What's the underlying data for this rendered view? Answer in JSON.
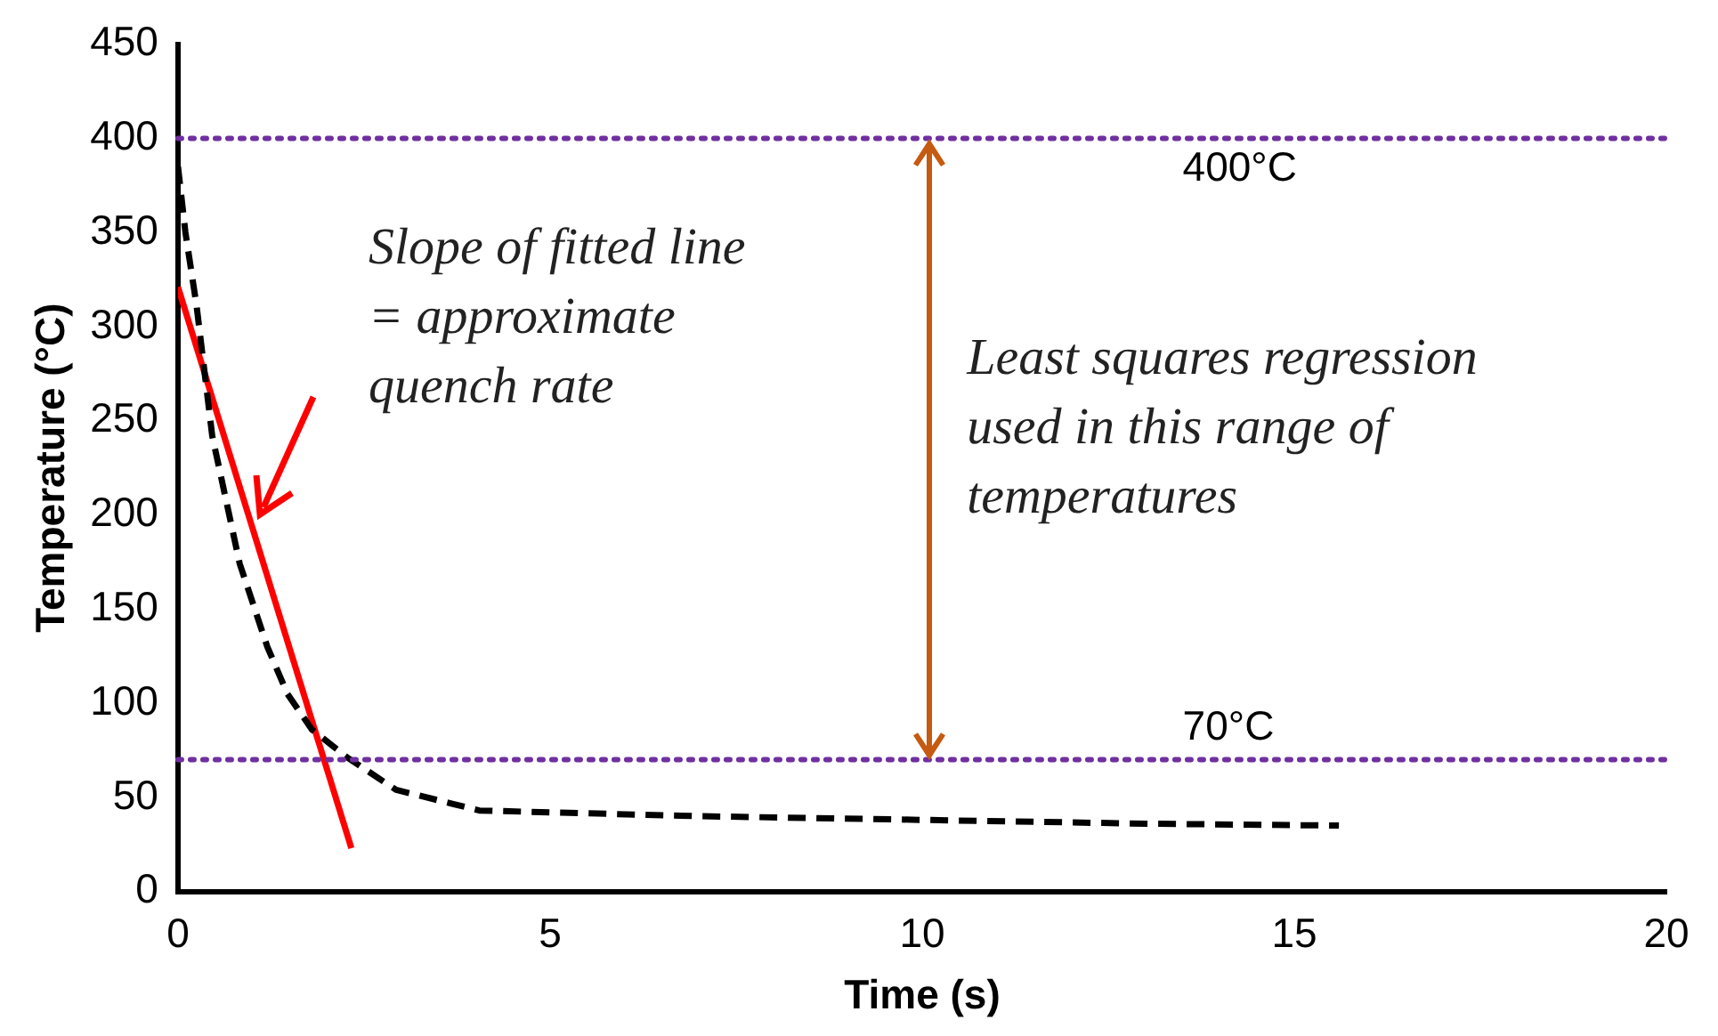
{
  "chart_data": {
    "type": "line",
    "xlabel": "Time (s)",
    "ylabel": "Temperature (°C)",
    "xlim": [
      0,
      20
    ],
    "xticks": [
      0,
      5,
      10,
      15,
      20
    ],
    "ylim": [
      0,
      450
    ],
    "yticks": [
      0,
      50,
      100,
      150,
      200,
      250,
      300,
      350,
      400,
      450
    ],
    "grid": false,
    "legend": false,
    "marker": "none",
    "series": [
      {
        "color": "#000000",
        "line_style": "dashed",
        "x": [
          0,
          0.1,
          0.25,
          0.46,
          0.83,
          1.2,
          1.47,
          1.8,
          2.28,
          2.93,
          4.05,
          5,
          7,
          10,
          13,
          15.6
        ],
        "values": [
          385,
          350,
          311,
          242,
          174,
          130,
          105,
          86,
          71,
          54,
          43,
          42,
          40,
          38,
          36,
          35
        ]
      },
      {
        "color": "#ff0000",
        "line_style": "solid",
        "x": [
          0,
          2.33
        ],
        "values": [
          321,
          23
        ]
      }
    ],
    "ref_lines": [
      {
        "axis": "y",
        "value": 400,
        "label": "400°C",
        "color": "#7030a0",
        "line_style": "dotted"
      },
      {
        "axis": "y",
        "value": 70,
        "label": "70°C",
        "color": "#7030a0",
        "line_style": "dotted"
      }
    ],
    "annotations": [
      "Slope of fitted line = approximate quench rate",
      "Least squares regression used in this range of temperatures"
    ]
  }
}
